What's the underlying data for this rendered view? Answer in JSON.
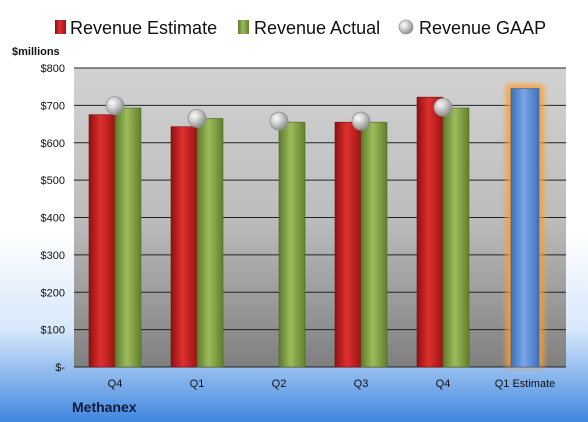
{
  "chart_data": {
    "type": "bar",
    "ylabel": "$millions",
    "company": "Methanex",
    "categories": [
      "Q4",
      "Q1",
      "Q2",
      "Q3",
      "Q4",
      "Q1 Estimate"
    ],
    "yticks": [
      "$-",
      "$100",
      "$200",
      "$300",
      "$400",
      "$500",
      "$600",
      "$700",
      "$800"
    ],
    "ylim": [
      0,
      800
    ],
    "series": [
      {
        "name": "Revenue Estimate",
        "type": "bar",
        "color": "#cc2222",
        "values": [
          675,
          643,
          null,
          655,
          722,
          null
        ]
      },
      {
        "name": "Revenue Actual",
        "type": "bar",
        "color": "#8aaa4a",
        "values": [
          693,
          665,
          655,
          655,
          693,
          null
        ]
      },
      {
        "name": "Revenue GAAP",
        "type": "marker",
        "color": "#b9b9b9",
        "values": [
          699,
          665,
          658,
          658,
          695,
          null
        ]
      },
      {
        "name": "Q1 Estimate",
        "type": "bar",
        "color": "#5b8fd6",
        "values": [
          null,
          null,
          null,
          null,
          null,
          745
        ],
        "highlight": true
      }
    ],
    "legend_position": "top",
    "grid": true
  }
}
